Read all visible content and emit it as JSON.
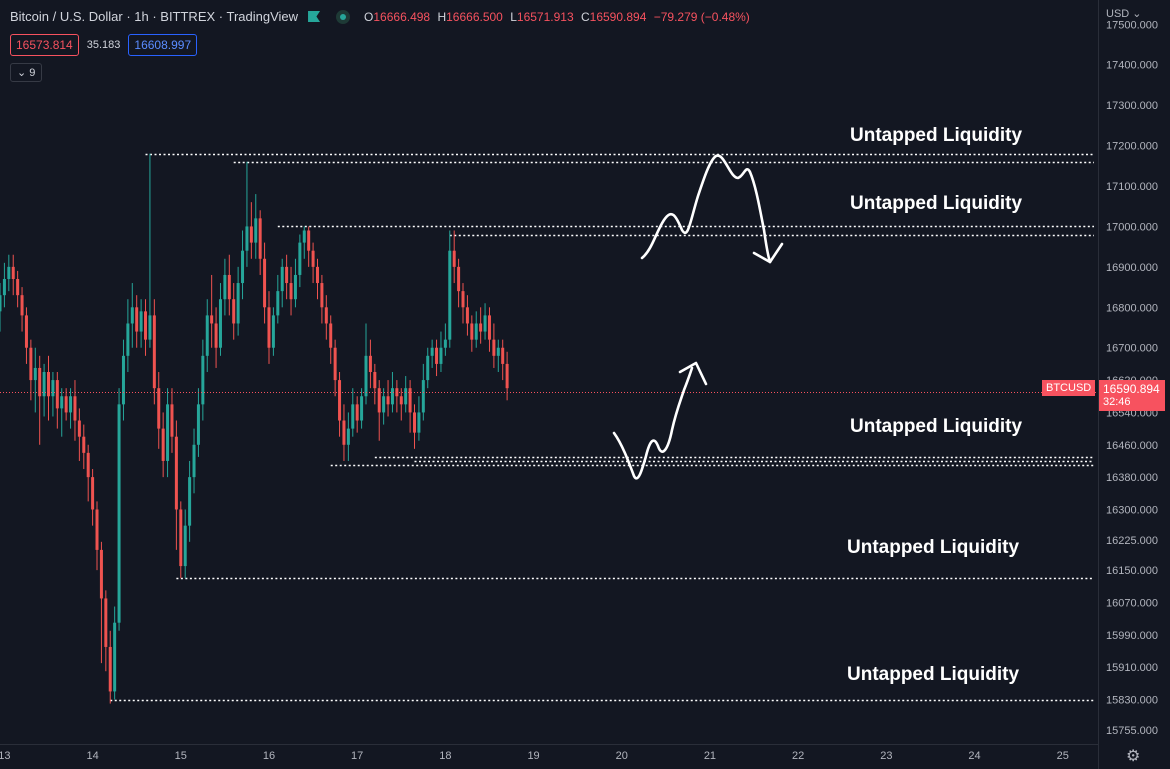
{
  "header": {
    "title": "Bitcoin / U.S. Dollar · 1h · BITTREX · TradingView",
    "ohlc": {
      "o_key": "O",
      "o": "16666.498",
      "h_key": "H",
      "h": "16666.500",
      "l_key": "L",
      "l": "16571.913",
      "c_key": "C",
      "c": "16590.894",
      "change": "−79.279 (−0.48%)"
    }
  },
  "quotes": {
    "bid": "16573.814",
    "spread": "35.183",
    "ask": "16608.997"
  },
  "indicators_toggle": "9",
  "currency_selector": "USD",
  "price_axis": {
    "ticks": [
      "17500.000",
      "17400.000",
      "17300.000",
      "17200.000",
      "17100.000",
      "17000.000",
      "16900.000",
      "16800.000",
      "16700.000",
      "16620.000",
      "16540.000",
      "16460.000",
      "16380.000",
      "16300.000",
      "16225.000",
      "16150.000",
      "16070.000",
      "15990.000",
      "15910.000",
      "15830.000",
      "15755.000"
    ]
  },
  "time_axis": {
    "ticks": [
      "13",
      "14",
      "15",
      "16",
      "17",
      "18",
      "19",
      "20",
      "21",
      "22",
      "23",
      "24",
      "25"
    ]
  },
  "current_price": {
    "symbol": "BTCUSD",
    "price": "16590.894",
    "countdown": "32:46"
  },
  "annotations": [
    "Untapped Liquidity",
    "Untapped Liquidity",
    "Untapped Liquidity",
    "Untapped Liquidity",
    "Untapped Liquidity"
  ],
  "colors": {
    "background": "#131722",
    "up": "#26a69a",
    "down": "#ef5350",
    "price_line": "#f7525f"
  },
  "chart_data": {
    "type": "candlestick",
    "title": "Bitcoin / U.S. Dollar · 1h · BITTREX",
    "ylim": [
      15720,
      17560
    ],
    "x_axis": {
      "unit": "day",
      "range": [
        12.95,
        25.4
      ]
    },
    "series": [
      {
        "x": 12.95,
        "o": 16790,
        "c": 16830,
        "h": 16860,
        "l": 16740
      },
      {
        "x": 13.0,
        "o": 16830,
        "c": 16870,
        "h": 16910,
        "l": 16800
      },
      {
        "x": 13.05,
        "o": 16870,
        "c": 16900,
        "h": 16930,
        "l": 16840
      },
      {
        "x": 13.1,
        "o": 16900,
        "c": 16870,
        "h": 16930,
        "l": 16830
      },
      {
        "x": 13.15,
        "o": 16870,
        "c": 16830,
        "h": 16890,
        "l": 16800
      },
      {
        "x": 13.2,
        "o": 16830,
        "c": 16780,
        "h": 16850,
        "l": 16740
      },
      {
        "x": 13.25,
        "o": 16780,
        "c": 16700,
        "h": 16800,
        "l": 16660
      },
      {
        "x": 13.3,
        "o": 16700,
        "c": 16620,
        "h": 16720,
        "l": 16570
      },
      {
        "x": 13.35,
        "o": 16620,
        "c": 16650,
        "h": 16700,
        "l": 16540
      },
      {
        "x": 13.4,
        "o": 16650,
        "c": 16580,
        "h": 16680,
        "l": 16460
      },
      {
        "x": 13.45,
        "o": 16580,
        "c": 16640,
        "h": 16660,
        "l": 16530
      },
      {
        "x": 13.5,
        "o": 16640,
        "c": 16580,
        "h": 16680,
        "l": 16520
      },
      {
        "x": 13.55,
        "o": 16580,
        "c": 16620,
        "h": 16640,
        "l": 16530
      },
      {
        "x": 13.6,
        "o": 16620,
        "c": 16550,
        "h": 16640,
        "l": 16500
      },
      {
        "x": 13.65,
        "o": 16550,
        "c": 16580,
        "h": 16600,
        "l": 16480
      },
      {
        "x": 13.7,
        "o": 16580,
        "c": 16540,
        "h": 16600,
        "l": 16520
      },
      {
        "x": 13.75,
        "o": 16540,
        "c": 16580,
        "h": 16600,
        "l": 16500
      },
      {
        "x": 13.8,
        "o": 16580,
        "c": 16520,
        "h": 16620,
        "l": 16470
      },
      {
        "x": 13.85,
        "o": 16520,
        "c": 16480,
        "h": 16550,
        "l": 16420
      },
      {
        "x": 13.9,
        "o": 16480,
        "c": 16440,
        "h": 16510,
        "l": 16400
      },
      {
        "x": 13.95,
        "o": 16440,
        "c": 16380,
        "h": 16460,
        "l": 16320
      },
      {
        "x": 14.0,
        "o": 16380,
        "c": 16300,
        "h": 16400,
        "l": 16260
      },
      {
        "x": 14.05,
        "o": 16300,
        "c": 16200,
        "h": 16320,
        "l": 16150
      },
      {
        "x": 14.1,
        "o": 16200,
        "c": 16080,
        "h": 16220,
        "l": 15920
      },
      {
        "x": 14.15,
        "o": 16080,
        "c": 15960,
        "h": 16100,
        "l": 15900
      },
      {
        "x": 14.2,
        "o": 15960,
        "c": 15850,
        "h": 16000,
        "l": 15820
      },
      {
        "x": 14.25,
        "o": 15850,
        "c": 16020,
        "h": 16060,
        "l": 15830
      },
      {
        "x": 14.3,
        "o": 16020,
        "c": 16560,
        "h": 16600,
        "l": 16000
      },
      {
        "x": 14.35,
        "o": 16560,
        "c": 16680,
        "h": 16720,
        "l": 16520
      },
      {
        "x": 14.4,
        "o": 16680,
        "c": 16760,
        "h": 16820,
        "l": 16640
      },
      {
        "x": 14.45,
        "o": 16760,
        "c": 16800,
        "h": 16860,
        "l": 16700
      },
      {
        "x": 14.5,
        "o": 16800,
        "c": 16740,
        "h": 16830,
        "l": 16700
      },
      {
        "x": 14.55,
        "o": 16740,
        "c": 16790,
        "h": 16820,
        "l": 16700
      },
      {
        "x": 14.6,
        "o": 16790,
        "c": 16720,
        "h": 16820,
        "l": 16680
      },
      {
        "x": 14.65,
        "o": 16720,
        "c": 16780,
        "h": 17180,
        "l": 16700
      },
      {
        "x": 14.7,
        "o": 16780,
        "c": 16600,
        "h": 16820,
        "l": 16560
      },
      {
        "x": 14.75,
        "o": 16600,
        "c": 16500,
        "h": 16640,
        "l": 16450
      },
      {
        "x": 14.8,
        "o": 16500,
        "c": 16420,
        "h": 16540,
        "l": 16380
      },
      {
        "x": 14.85,
        "o": 16420,
        "c": 16560,
        "h": 16600,
        "l": 16380
      },
      {
        "x": 14.9,
        "o": 16560,
        "c": 16480,
        "h": 16600,
        "l": 16440
      },
      {
        "x": 14.95,
        "o": 16480,
        "c": 16300,
        "h": 16520,
        "l": 16200
      },
      {
        "x": 15.0,
        "o": 16300,
        "c": 16160,
        "h": 16320,
        "l": 16130
      },
      {
        "x": 15.05,
        "o": 16160,
        "c": 16260,
        "h": 16300,
        "l": 16130
      },
      {
        "x": 15.1,
        "o": 16260,
        "c": 16380,
        "h": 16420,
        "l": 16220
      },
      {
        "x": 15.15,
        "o": 16380,
        "c": 16460,
        "h": 16500,
        "l": 16340
      },
      {
        "x": 15.2,
        "o": 16460,
        "c": 16560,
        "h": 16600,
        "l": 16430
      },
      {
        "x": 15.25,
        "o": 16560,
        "c": 16680,
        "h": 16720,
        "l": 16520
      },
      {
        "x": 15.3,
        "o": 16680,
        "c": 16780,
        "h": 16820,
        "l": 16640
      },
      {
        "x": 15.35,
        "o": 16780,
        "c": 16760,
        "h": 16880,
        "l": 16700
      },
      {
        "x": 15.4,
        "o": 16760,
        "c": 16700,
        "h": 16800,
        "l": 16650
      },
      {
        "x": 15.45,
        "o": 16700,
        "c": 16820,
        "h": 16860,
        "l": 16680
      },
      {
        "x": 15.5,
        "o": 16820,
        "c": 16880,
        "h": 16920,
        "l": 16780
      },
      {
        "x": 15.55,
        "o": 16880,
        "c": 16820,
        "h": 16930,
        "l": 16780
      },
      {
        "x": 15.6,
        "o": 16820,
        "c": 16760,
        "h": 16860,
        "l": 16720
      },
      {
        "x": 15.65,
        "o": 16760,
        "c": 16860,
        "h": 16900,
        "l": 16730
      },
      {
        "x": 15.7,
        "o": 16860,
        "c": 16940,
        "h": 16990,
        "l": 16820
      },
      {
        "x": 15.75,
        "o": 16940,
        "c": 17000,
        "h": 17160,
        "l": 16900
      },
      {
        "x": 15.8,
        "o": 17000,
        "c": 16960,
        "h": 17060,
        "l": 16920
      },
      {
        "x": 15.85,
        "o": 16960,
        "c": 17020,
        "h": 17080,
        "l": 16920
      },
      {
        "x": 15.9,
        "o": 17020,
        "c": 16920,
        "h": 17040,
        "l": 16880
      },
      {
        "x": 15.95,
        "o": 16920,
        "c": 16800,
        "h": 16960,
        "l": 16760
      },
      {
        "x": 16.0,
        "o": 16800,
        "c": 16700,
        "h": 16840,
        "l": 16660
      },
      {
        "x": 16.05,
        "o": 16700,
        "c": 16780,
        "h": 16800,
        "l": 16680
      },
      {
        "x": 16.1,
        "o": 16780,
        "c": 16840,
        "h": 16880,
        "l": 16760
      },
      {
        "x": 16.15,
        "o": 16840,
        "c": 16900,
        "h": 16920,
        "l": 16800
      },
      {
        "x": 16.2,
        "o": 16900,
        "c": 16860,
        "h": 16930,
        "l": 16820
      },
      {
        "x": 16.25,
        "o": 16860,
        "c": 16820,
        "h": 16900,
        "l": 16780
      },
      {
        "x": 16.3,
        "o": 16820,
        "c": 16880,
        "h": 16920,
        "l": 16800
      },
      {
        "x": 16.35,
        "o": 16880,
        "c": 16960,
        "h": 16980,
        "l": 16850
      },
      {
        "x": 16.4,
        "o": 16960,
        "c": 16990,
        "h": 17000,
        "l": 16920
      },
      {
        "x": 16.45,
        "o": 16990,
        "c": 16940,
        "h": 17000,
        "l": 16900
      },
      {
        "x": 16.5,
        "o": 16940,
        "c": 16900,
        "h": 16960,
        "l": 16860
      },
      {
        "x": 16.55,
        "o": 16900,
        "c": 16860,
        "h": 16920,
        "l": 16820
      },
      {
        "x": 16.6,
        "o": 16860,
        "c": 16800,
        "h": 16880,
        "l": 16760
      },
      {
        "x": 16.65,
        "o": 16800,
        "c": 16760,
        "h": 16830,
        "l": 16720
      },
      {
        "x": 16.7,
        "o": 16760,
        "c": 16700,
        "h": 16780,
        "l": 16660
      },
      {
        "x": 16.75,
        "o": 16700,
        "c": 16620,
        "h": 16720,
        "l": 16580
      },
      {
        "x": 16.8,
        "o": 16620,
        "c": 16520,
        "h": 16640,
        "l": 16480
      },
      {
        "x": 16.85,
        "o": 16520,
        "c": 16460,
        "h": 16560,
        "l": 16420
      },
      {
        "x": 16.9,
        "o": 16460,
        "c": 16500,
        "h": 16540,
        "l": 16420
      },
      {
        "x": 16.95,
        "o": 16500,
        "c": 16560,
        "h": 16600,
        "l": 16480
      },
      {
        "x": 17.0,
        "o": 16560,
        "c": 16520,
        "h": 16580,
        "l": 16490
      },
      {
        "x": 17.05,
        "o": 16520,
        "c": 16580,
        "h": 16600,
        "l": 16500
      },
      {
        "x": 17.1,
        "o": 16580,
        "c": 16680,
        "h": 16760,
        "l": 16560
      },
      {
        "x": 17.15,
        "o": 16680,
        "c": 16640,
        "h": 16720,
        "l": 16600
      },
      {
        "x": 17.2,
        "o": 16640,
        "c": 16600,
        "h": 16660,
        "l": 16560
      },
      {
        "x": 17.25,
        "o": 16600,
        "c": 16540,
        "h": 16620,
        "l": 16470
      },
      {
        "x": 17.3,
        "o": 16540,
        "c": 16580,
        "h": 16600,
        "l": 16510
      },
      {
        "x": 17.35,
        "o": 16580,
        "c": 16560,
        "h": 16620,
        "l": 16530
      },
      {
        "x": 17.4,
        "o": 16560,
        "c": 16600,
        "h": 16640,
        "l": 16540
      },
      {
        "x": 17.45,
        "o": 16600,
        "c": 16580,
        "h": 16620,
        "l": 16540
      },
      {
        "x": 17.5,
        "o": 16580,
        "c": 16560,
        "h": 16600,
        "l": 16520
      },
      {
        "x": 17.55,
        "o": 16560,
        "c": 16600,
        "h": 16630,
        "l": 16540
      },
      {
        "x": 17.6,
        "o": 16600,
        "c": 16540,
        "h": 16620,
        "l": 16490
      },
      {
        "x": 17.65,
        "o": 16540,
        "c": 16490,
        "h": 16560,
        "l": 16450
      },
      {
        "x": 17.7,
        "o": 16490,
        "c": 16540,
        "h": 16580,
        "l": 16470
      },
      {
        "x": 17.75,
        "o": 16540,
        "c": 16620,
        "h": 16660,
        "l": 16520
      },
      {
        "x": 17.8,
        "o": 16620,
        "c": 16680,
        "h": 16700,
        "l": 16600
      },
      {
        "x": 17.85,
        "o": 16680,
        "c": 16700,
        "h": 16720,
        "l": 16650
      },
      {
        "x": 17.9,
        "o": 16700,
        "c": 16660,
        "h": 16720,
        "l": 16630
      },
      {
        "x": 17.95,
        "o": 16660,
        "c": 16700,
        "h": 16740,
        "l": 16640
      },
      {
        "x": 18.0,
        "o": 16700,
        "c": 16720,
        "h": 16760,
        "l": 16680
      },
      {
        "x": 18.05,
        "o": 16720,
        "c": 16940,
        "h": 16990,
        "l": 16700
      },
      {
        "x": 18.1,
        "o": 16940,
        "c": 16900,
        "h": 16990,
        "l": 16860
      },
      {
        "x": 18.15,
        "o": 16900,
        "c": 16840,
        "h": 16920,
        "l": 16800
      },
      {
        "x": 18.2,
        "o": 16840,
        "c": 16800,
        "h": 16860,
        "l": 16760
      },
      {
        "x": 18.25,
        "o": 16800,
        "c": 16760,
        "h": 16830,
        "l": 16730
      },
      {
        "x": 18.3,
        "o": 16760,
        "c": 16720,
        "h": 16780,
        "l": 16690
      },
      {
        "x": 18.35,
        "o": 16720,
        "c": 16760,
        "h": 16790,
        "l": 16700
      },
      {
        "x": 18.4,
        "o": 16760,
        "c": 16740,
        "h": 16800,
        "l": 16710
      },
      {
        "x": 18.45,
        "o": 16740,
        "c": 16780,
        "h": 16810,
        "l": 16720
      },
      {
        "x": 18.5,
        "o": 16780,
        "c": 16720,
        "h": 16800,
        "l": 16690
      },
      {
        "x": 18.55,
        "o": 16720,
        "c": 16680,
        "h": 16760,
        "l": 16650
      },
      {
        "x": 18.6,
        "o": 16680,
        "c": 16700,
        "h": 16720,
        "l": 16640
      },
      {
        "x": 18.65,
        "o": 16700,
        "c": 16660,
        "h": 16720,
        "l": 16620
      },
      {
        "x": 18.7,
        "o": 16660,
        "c": 16600,
        "h": 16690,
        "l": 16570
      }
    ],
    "levels": [
      {
        "price": 17180,
        "x_start": 14.6
      },
      {
        "price": 17160,
        "x_start": 15.6
      },
      {
        "price": 17000,
        "x_start": 16.1
      },
      {
        "price": 16980,
        "x_start": 18.05
      },
      {
        "price": 16430,
        "x_start": 17.2
      },
      {
        "price": 16420,
        "x_start": 17.65
      },
      {
        "price": 16410,
        "x_start": 16.7
      },
      {
        "price": 16130,
        "x_start": 14.95
      },
      {
        "price": 15830,
        "x_start": 14.2
      }
    ],
    "current_price": 16590.894,
    "annotations_text": "Untapped Liquidity"
  }
}
